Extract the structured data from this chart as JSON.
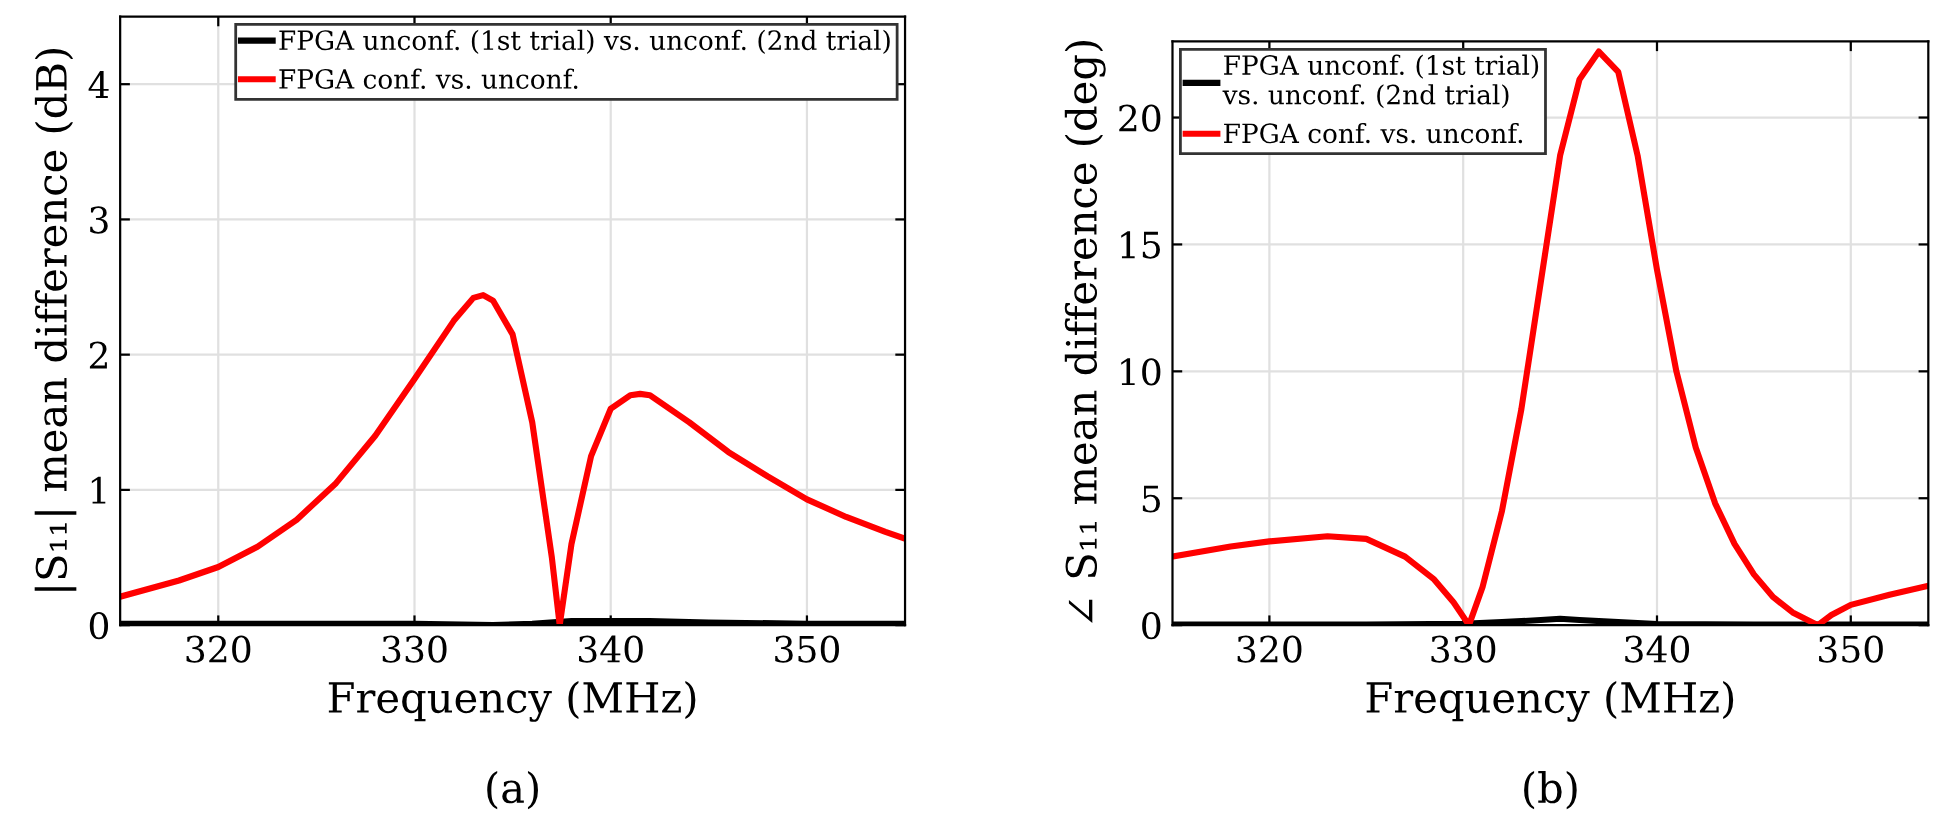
{
  "chart_data": [
    {
      "type": "line",
      "xlabel": "Frequency (MHz)",
      "ylabel": "|S₁₁| mean difference (dB)",
      "xlim": [
        315,
        355
      ],
      "xticks": [
        320,
        330,
        340,
        350
      ],
      "ylim": [
        0,
        4.5
      ],
      "yticks": [
        0,
        1,
        2,
        3,
        4
      ],
      "grid": true,
      "legend": "top right",
      "annotations": [
        "(a)"
      ],
      "series": [
        {
          "name": "FPGA unconf. (1st trial) vs. unconf. (2nd trial)",
          "color": "#000000",
          "x": [
            315,
            320,
            325,
            330,
            334,
            336,
            338,
            340,
            342,
            345,
            350,
            355
          ],
          "values": [
            0.01,
            0.01,
            0.01,
            0.01,
            0.0,
            0.01,
            0.03,
            0.03,
            0.03,
            0.02,
            0.01,
            0.01
          ]
        },
        {
          "name": "FPGA conf. vs. unconf.",
          "color": "#ff0000",
          "x": [
            315,
            318,
            320,
            322,
            324,
            326,
            328,
            330,
            332,
            333,
            333.5,
            334,
            335,
            336,
            337,
            337.4,
            338,
            339,
            340,
            341,
            341.5,
            342,
            344,
            346,
            348,
            350,
            352,
            354,
            355
          ],
          "values": [
            0.21,
            0.33,
            0.43,
            0.58,
            0.78,
            1.05,
            1.4,
            1.82,
            2.25,
            2.42,
            2.44,
            2.4,
            2.15,
            1.5,
            0.5,
            0.0,
            0.6,
            1.25,
            1.6,
            1.7,
            1.71,
            1.7,
            1.5,
            1.28,
            1.1,
            0.93,
            0.8,
            0.69,
            0.64
          ]
        }
      ]
    },
    {
      "type": "line",
      "xlabel": "Frequency (MHz)",
      "ylabel": "∠ S₁₁ mean difference (deg)",
      "xlim": [
        315,
        354
      ],
      "xticks": [
        320,
        330,
        340,
        350
      ],
      "ylim": [
        0,
        23
      ],
      "yticks": [
        0,
        5,
        10,
        15,
        20
      ],
      "grid": true,
      "legend": "top left",
      "annotations": [
        "(b)"
      ],
      "series": [
        {
          "name": "FPGA unconf. (1st trial)\nvs. unconf. (2nd trial)",
          "color": "#000000",
          "x": [
            315,
            320,
            325,
            330,
            332,
            334,
            335,
            336,
            338,
            340,
            345,
            350,
            354
          ],
          "values": [
            0.02,
            0.02,
            0.02,
            0.05,
            0.12,
            0.2,
            0.25,
            0.2,
            0.12,
            0.04,
            0.02,
            0.02,
            0.02
          ]
        },
        {
          "name": "FPGA conf. vs. unconf.",
          "color": "#ff0000",
          "x": [
            315,
            318,
            320,
            323,
            325,
            327,
            328.5,
            329.5,
            330.3,
            331,
            332,
            333,
            334,
            335,
            336,
            337,
            338,
            339,
            340,
            341,
            342,
            343,
            344,
            345,
            346,
            347,
            348.3,
            349,
            350,
            352,
            354
          ],
          "values": [
            2.7,
            3.1,
            3.3,
            3.5,
            3.4,
            2.7,
            1.8,
            0.9,
            0.0,
            1.5,
            4.5,
            8.5,
            13.5,
            18.5,
            21.5,
            22.6,
            21.8,
            18.5,
            14,
            10,
            7,
            4.8,
            3.2,
            2,
            1.1,
            0.5,
            0.0,
            0.4,
            0.8,
            1.2,
            1.55
          ]
        }
      ]
    }
  ]
}
